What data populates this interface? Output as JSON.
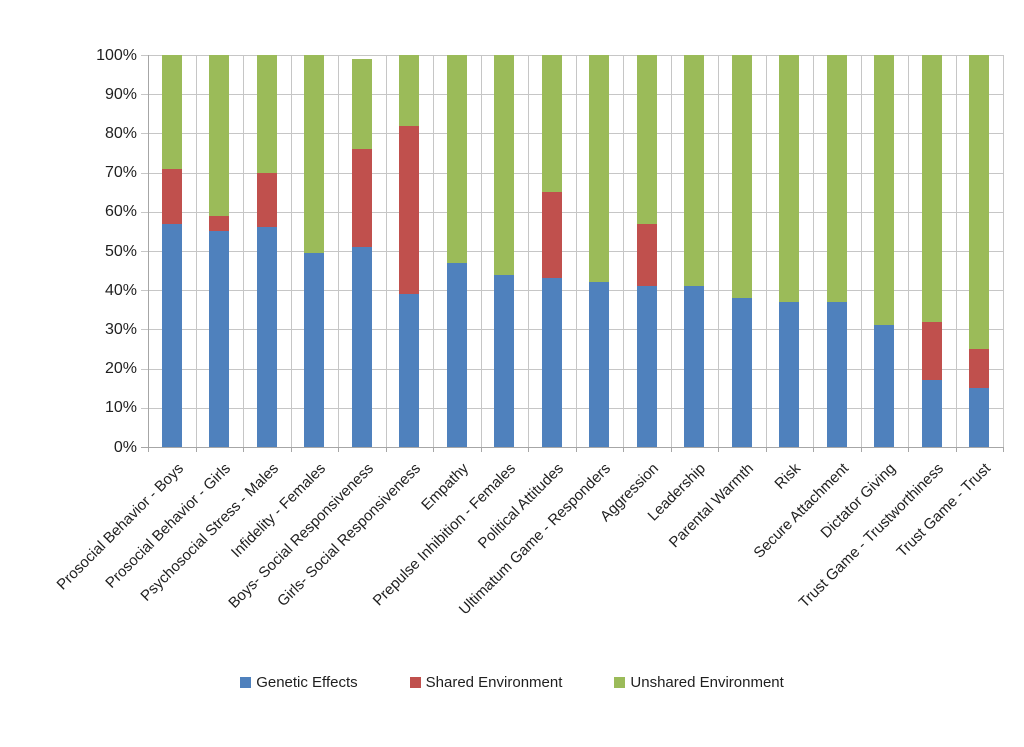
{
  "chart_data": {
    "type": "bar",
    "variant": "stacked-100",
    "title": "",
    "xlabel": "",
    "ylabel": "",
    "grid": true,
    "legend_position": "bottom",
    "y_axis": {
      "min": 0,
      "max": 100,
      "tick_step": 10,
      "tick_labels": [
        "0%",
        "10%",
        "20%",
        "30%",
        "40%",
        "50%",
        "60%",
        "70%",
        "80%",
        "90%",
        "100%"
      ]
    },
    "categories": [
      "Prosocial Behavior - Boys",
      "Prosocial Behavior - Girls",
      "Psychosocial Stress - Males",
      "Infidelity - Females",
      "Boys- Social Responsiveness",
      "Girls- Social Responsiveness",
      "Empathy",
      "Prepulse Inhibition - Females",
      "Political Attitudes",
      "Ultimatum Game - Responders",
      "Aggression",
      "Leadership",
      "Parental Warmth",
      "Risk",
      "Secure Attachment",
      "Dictator Giving",
      "Trust Game - Trustworthiness",
      "Trust Game - Trust"
    ],
    "series": [
      {
        "name": "Genetic Effects",
        "color": "#4F81BD",
        "values": [
          57,
          55,
          56,
          49.5,
          51,
          39,
          47,
          44,
          43,
          42,
          41,
          41,
          38,
          37,
          37,
          31,
          17,
          15
        ]
      },
      {
        "name": "Shared Environment",
        "color": "#C0504D",
        "values": [
          14,
          4,
          14,
          0,
          25,
          43,
          0,
          0,
          22,
          0,
          16,
          0,
          0,
          0,
          0,
          0,
          15,
          10
        ]
      },
      {
        "name": "Unshared Environment",
        "color": "#9BBB59",
        "values": [
          29,
          41,
          30,
          50.5,
          23,
          18,
          53,
          56,
          35,
          58,
          43,
          59,
          62,
          63,
          63,
          69,
          68,
          75
        ]
      }
    ]
  },
  "colors": {
    "background": "#ffffff",
    "gridline": "#c6c6c6",
    "axis": "#a6a6a6",
    "text": "#1f1f1f"
  }
}
